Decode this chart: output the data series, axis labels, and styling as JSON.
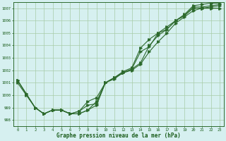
{
  "title": "Graphe pression niveau de la mer (hPa)",
  "background_color": "#d6f0f0",
  "plot_bg_color": "#d6f0f0",
  "line_color": "#2d6a2d",
  "grid_color": "#a8cca8",
  "ylim": [
    997.5,
    1007.5
  ],
  "xlim": [
    -0.5,
    23.5
  ],
  "yticks": [
    998,
    999,
    1000,
    1001,
    1002,
    1003,
    1004,
    1005,
    1006,
    1007
  ],
  "xticks": [
    0,
    1,
    2,
    3,
    4,
    5,
    6,
    7,
    8,
    9,
    10,
    11,
    12,
    13,
    14,
    15,
    16,
    17,
    18,
    19,
    20,
    21,
    22,
    23
  ],
  "series1_y": [
    1001.0,
    1000.0,
    999.0,
    998.5,
    998.8,
    998.8,
    998.5,
    998.5,
    998.8,
    999.5,
    1001.0,
    1001.3,
    1001.8,
    1002.0,
    1002.5,
    1003.5,
    1004.3,
    1005.0,
    1005.8,
    1006.3,
    1006.8,
    1007.0,
    1007.0,
    1007.0
  ],
  "series2_y": [
    1001.2,
    1000.1,
    999.0,
    998.5,
    998.8,
    998.8,
    998.5,
    998.5,
    998.8,
    999.2,
    1001.0,
    1001.4,
    1001.8,
    1002.1,
    1002.6,
    1004.0,
    1004.8,
    1005.3,
    1006.0,
    1006.4,
    1007.0,
    1007.0,
    1007.1,
    1007.2
  ],
  "series3_y": [
    1001.2,
    1000.1,
    999.0,
    998.5,
    998.8,
    998.8,
    998.5,
    998.7,
    999.2,
    999.3,
    1001.0,
    1001.4,
    1001.8,
    1002.1,
    1003.5,
    1003.9,
    1005.0,
    1005.3,
    1006.0,
    1006.4,
    1007.1,
    1007.1,
    1007.2,
    1007.3
  ],
  "series4_y": [
    1001.2,
    1000.1,
    999.0,
    998.5,
    998.8,
    998.8,
    998.5,
    998.7,
    999.5,
    999.8,
    1001.0,
    1001.4,
    1001.9,
    1002.2,
    1003.8,
    1004.5,
    1005.0,
    1005.5,
    1006.0,
    1006.5,
    1007.2,
    1007.3,
    1007.4,
    1007.4
  ]
}
